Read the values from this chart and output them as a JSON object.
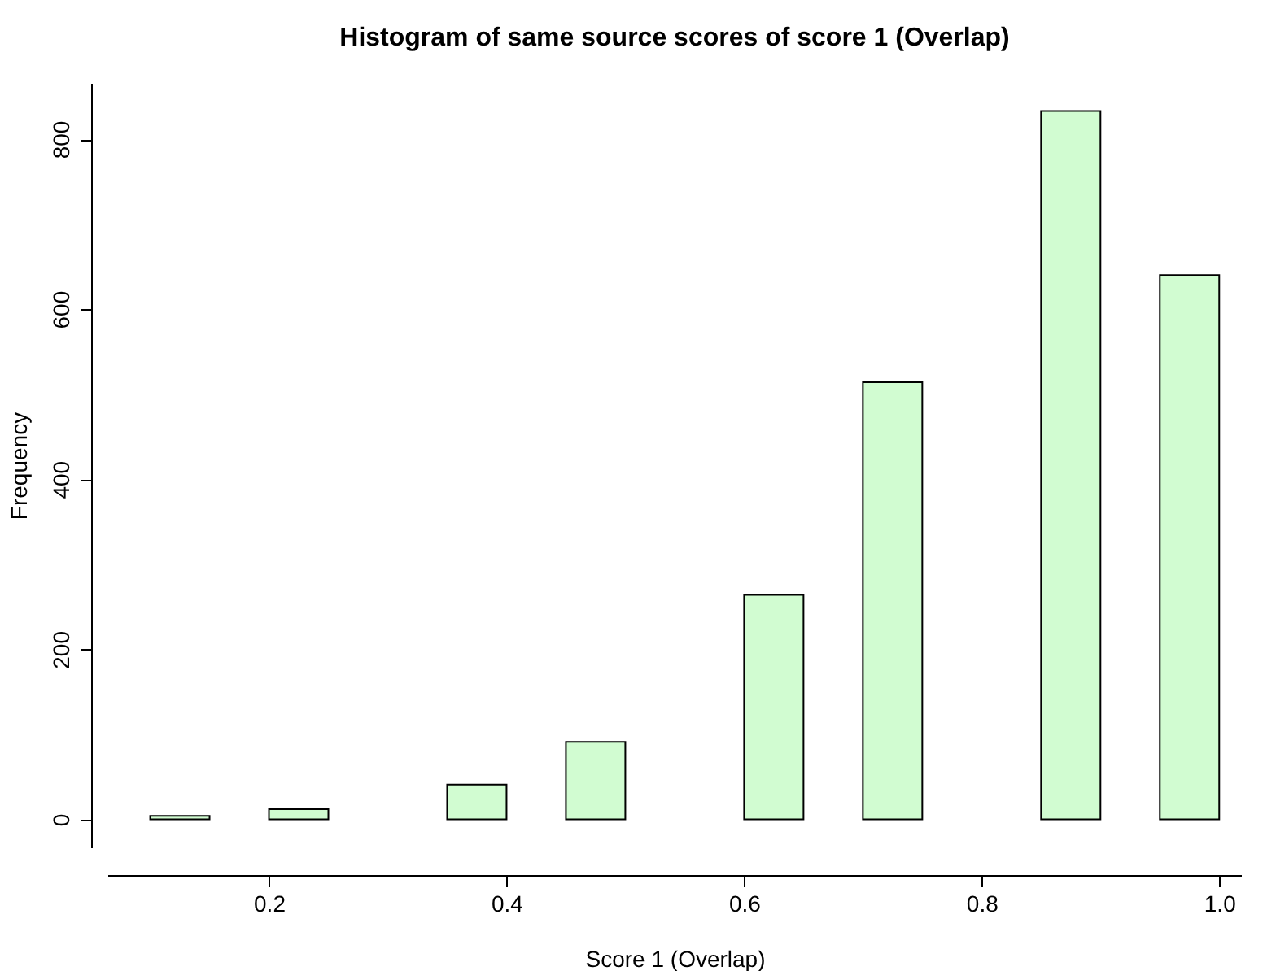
{
  "chart_data": {
    "type": "histogram",
    "title": "Histogram of same source scores of score 1 (Overlap)",
    "xlabel": "Score 1 (Overlap)",
    "ylabel": "Frequency",
    "bins": [
      0.1,
      0.15,
      0.2,
      0.25,
      0.3,
      0.35,
      0.4,
      0.45,
      0.5,
      0.55,
      0.6,
      0.65,
      0.7,
      0.75,
      0.8,
      0.85,
      0.9,
      0.95,
      1.0
    ],
    "values": [
      4,
      0,
      12,
      0,
      0,
      41,
      0,
      91,
      0,
      0,
      264,
      0,
      514,
      0,
      0,
      833,
      0,
      640
    ],
    "color": "#d1fcd1",
    "xlim": [
      0.064,
      1.019
    ],
    "ylim": [
      -33,
      866
    ],
    "xticks": [
      0.2,
      0.4,
      0.6,
      0.8,
      {
        "value": 1.0,
        "label": "1.0"
      }
    ],
    "yticks": [
      0,
      200,
      400,
      600,
      800
    ],
    "grid": false
  }
}
